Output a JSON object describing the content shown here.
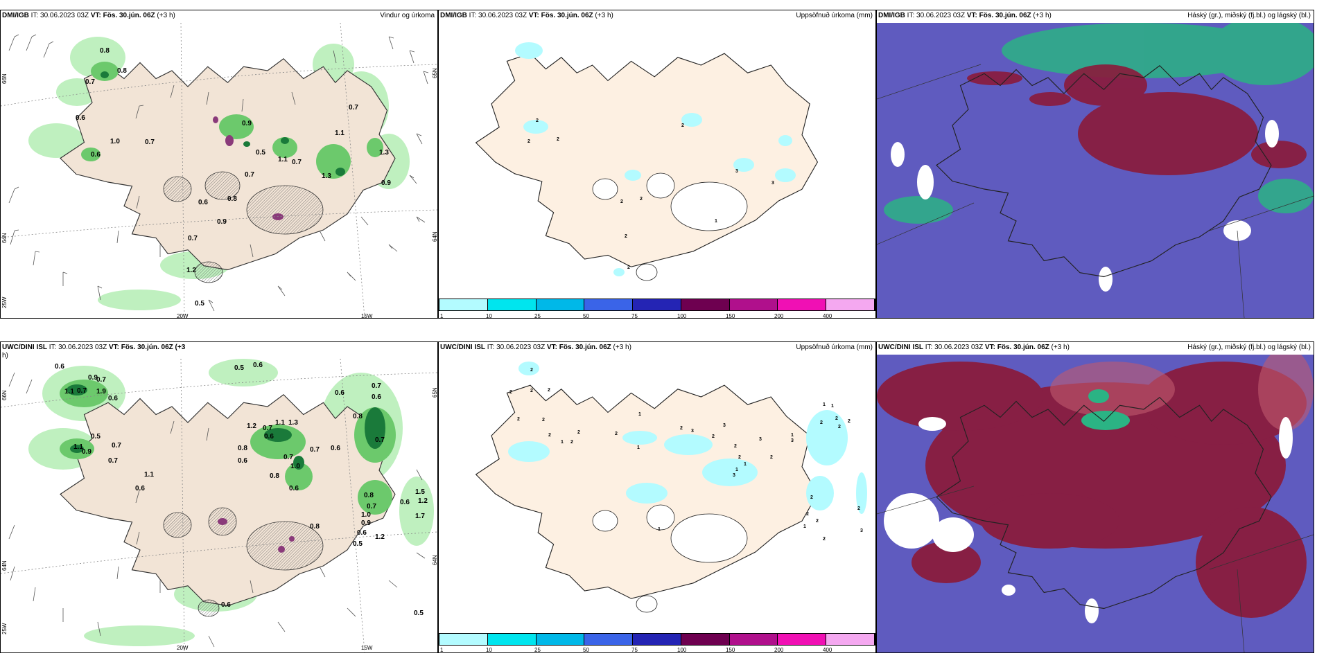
{
  "panels": {
    "p1": {
      "src": "DMI/IGB",
      "it": " IT: 30.06.2023 03Z ",
      "vt_label": "VT:",
      "vt": " Fös. 30.jún. 06Z",
      "lead": " (+3 h)",
      "title": "Vindur og úrkoma",
      "labels": [
        "0.8",
        "0.8",
        "0.7",
        "0.6",
        "1.0",
        "0.7",
        "0.6",
        "0.9",
        "0.5",
        "1.1",
        "0.7",
        "1.1",
        "1.3",
        "0.7",
        "0.7",
        "0.8",
        "0.6",
        "0.9",
        "0.7",
        "1.3",
        "0.9",
        "1.2",
        "0.5"
      ]
    },
    "p2": {
      "src": "DMI/IGB",
      "it": " IT: 30.06.2023 03Z ",
      "vt_label": "VT:",
      "vt": " Fös. 30.jún. 06Z",
      "lead": " (+3 h)",
      "title": "Uppsöfnuð úrkoma (mm)",
      "labels": [
        "2",
        "2",
        "2",
        "2",
        "3",
        "3",
        "2",
        "2",
        "1",
        "2",
        "2"
      ]
    },
    "p3": {
      "src": "DMI/IGB",
      "it": " IT: 30.06.2023 03Z ",
      "vt_label": "VT:",
      "vt": " Fös. 30.jún. 06Z",
      "lead": " (+3 h)",
      "title": "Háský (gr.), miðský (fj.bl.) og lágský (bl.)"
    },
    "p4": {
      "src": "UWC/DINI ISL",
      "it": " IT: 30.06.2023 03Z ",
      "vt_label": "VT:",
      "vt": " Fös. 30.jún. 06Z (+3",
      "lead": "h)",
      "title": "",
      "labels": [
        "0.6",
        "0.5",
        "0.6",
        "0.9",
        "0.7",
        "1.1",
        "0.7",
        "1.9",
        "0.6",
        "0.6",
        "0.7",
        "0.6",
        "1.1",
        "0.9",
        "0.7",
        "1.1",
        "1.2",
        "0.7",
        "1.1",
        "1.3",
        "0.7",
        "0.6",
        "0.8",
        "0.7",
        "0.8",
        "0.6",
        "0.7",
        "0.6",
        "1.0",
        "0.8",
        "0.6",
        "0.6",
        "0.7",
        "0.8",
        "0.7",
        "1.0",
        "1.2",
        "0.8",
        "0.9",
        "0.6",
        "0.5",
        "1.5",
        "1.2",
        "0.6",
        "1.7",
        "0.5",
        "0.6",
        "0.5"
      ]
    },
    "p5": {
      "src": "UWC/DINI ISL",
      "it": " IT: 30.06.2023 03Z ",
      "vt_label": "VT:",
      "vt": " Fös. 30.jún. 06Z",
      "lead": " (+3 h)",
      "title": "Uppsöfnuð úrkoma (mm)",
      "labels": [
        "2",
        "2",
        "2",
        "2",
        "2",
        "2",
        "2",
        "1",
        "2",
        "2",
        "2",
        "1",
        "1",
        "3",
        "2",
        "3",
        "2",
        "2",
        "3",
        "2",
        "1",
        "1",
        "3",
        "2",
        "2",
        "1",
        "1",
        "2",
        "2",
        "2",
        "3",
        "2",
        "2",
        "1",
        "2",
        "2",
        "3",
        "1",
        "1",
        "2"
      ]
    },
    "p6": {
      "src": "UWC/DINI ISL",
      "it": " IT: 30.06.2023 03Z ",
      "vt_label": "VT:",
      "vt": " Fös. 30.jún. 06Z",
      "lead": " (+3 h)",
      "title": "Háský (gr.), miðský (fj.bl.) og lágský (bl.)"
    }
  },
  "axes": {
    "lon_20w": "20W",
    "lon_15w": "15W",
    "lat_66n": "66N",
    "lat_64n": "64N",
    "lat_25w": "25W",
    "lat_65n": "65N",
    "lat_64n_right": "64N"
  },
  "colorbar": {
    "ticks": [
      "1",
      "10",
      "25",
      "50",
      "75",
      "100",
      "150",
      "200",
      "400"
    ],
    "colors": [
      "#b3fbff",
      "#00e5ee",
      "#00b8e8",
      "#3a64e8",
      "#2424b4",
      "#6e0050",
      "#b0108c",
      "#f010b4",
      "#f4a8f0"
    ]
  },
  "colors": {
    "land": "#f2e4d6",
    "land_right": "#fdf0e2",
    "precip_light": "#bff0bf",
    "precip_mid": "#6cc96c",
    "precip_dark": "#1a7a3a",
    "cloud_bg": "#5f5bbf",
    "cloud_red": "#8b1a3a",
    "cloud_green": "#2bb384"
  },
  "icons": {
    "wind": "wind-barb-icon",
    "glacier": "glacier-hatch-icon"
  }
}
